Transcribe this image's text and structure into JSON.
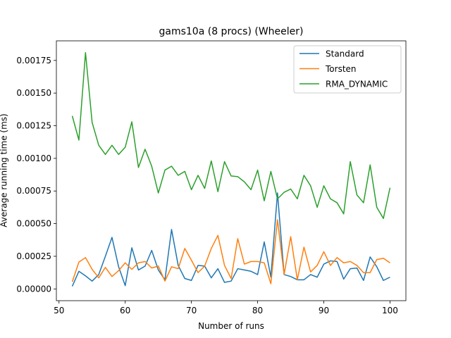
{
  "chart_data": {
    "type": "line",
    "title": "gams10a (8 procs) (Wheeler)",
    "xlabel": "Number of runs",
    "ylabel": "Average running time (ms)",
    "xlim": [
      49.6,
      102.4
    ],
    "ylim": [
      -9e-05,
      0.0019
    ],
    "xticks": [
      50,
      60,
      70,
      80,
      90,
      100
    ],
    "yticks": [
      0.0,
      0.00025,
      0.0005,
      0.00075,
      0.001,
      0.00125,
      0.0015,
      0.00175
    ],
    "ytick_labels": [
      "0.00000",
      "0.00025",
      "0.00050",
      "0.00075",
      "0.00100",
      "0.00125",
      "0.00150",
      "0.00175"
    ],
    "legend_position": "top-right",
    "x": [
      52,
      53,
      54,
      55,
      56,
      57,
      58,
      59,
      60,
      61,
      62,
      63,
      64,
      65,
      66,
      67,
      68,
      69,
      70,
      71,
      72,
      73,
      74,
      75,
      76,
      77,
      78,
      79,
      80,
      81,
      82,
      83,
      84,
      85,
      86,
      87,
      88,
      89,
      90,
      91,
      92,
      93,
      94,
      95,
      96,
      97,
      98,
      99,
      100
    ],
    "series": [
      {
        "name": "Standard",
        "color": "#1f77b4",
        "values": [
          2e-05,
          0.000135,
          0.0001,
          6e-05,
          0.00011,
          0.00025,
          0.000395,
          0.00017,
          2.5e-05,
          0.000315,
          0.000145,
          0.000175,
          0.000295,
          0.000145,
          7e-05,
          0.000455,
          0.00018,
          8e-05,
          6.5e-05,
          0.00018,
          0.000175,
          8.5e-05,
          0.000155,
          5e-05,
          6e-05,
          0.000155,
          0.000145,
          0.000135,
          0.00011,
          0.00036,
          9e-05,
          0.000735,
          0.00011,
          9.5e-05,
          7e-05,
          7e-05,
          0.00011,
          9e-05,
          0.00019,
          0.000215,
          0.00021,
          7.5e-05,
          0.000155,
          0.00016,
          6.5e-05,
          0.000245,
          0.00017,
          6.5e-05,
          9e-05
        ]
      },
      {
        "name": "Torsten",
        "color": "#ff7f0e",
        "values": [
          5.5e-05,
          0.000205,
          0.00024,
          0.00015,
          8.5e-05,
          0.000165,
          9.5e-05,
          0.00014,
          0.0002,
          0.00015,
          0.0002,
          0.00021,
          0.00016,
          0.000175,
          6e-05,
          0.00017,
          0.000155,
          0.00031,
          0.00022,
          0.000125,
          0.000175,
          0.00031,
          0.00041,
          0.00018,
          8e-05,
          0.000385,
          0.00019,
          0.00021,
          0.00021,
          0.0002,
          4e-05,
          0.00053,
          0.00011,
          0.0004,
          7e-05,
          0.00032,
          0.00013,
          0.00018,
          0.000285,
          0.00018,
          0.00024,
          0.0002,
          0.00021,
          0.00018,
          0.000125,
          0.000125,
          0.000225,
          0.000235,
          0.0002
        ]
      },
      {
        "name": "RMA_DYNAMIC",
        "color": "#2ca02c",
        "values": [
          0.001325,
          0.00114,
          0.00181,
          0.001275,
          0.0011,
          0.00103,
          0.0011,
          0.00103,
          0.001085,
          0.00128,
          0.00093,
          0.00107,
          0.00094,
          0.000735,
          0.00091,
          0.00094,
          0.00087,
          0.0009,
          0.00076,
          0.00087,
          0.00077,
          0.00098,
          0.000745,
          0.000975,
          0.000865,
          0.00086,
          0.00082,
          0.00076,
          0.00091,
          0.000675,
          0.0009,
          0.00069,
          0.00074,
          0.000765,
          0.00069,
          0.00087,
          0.00079,
          0.000625,
          0.00079,
          0.00069,
          0.00066,
          0.000575,
          0.000975,
          0.00072,
          0.00066,
          0.00095,
          0.000625,
          0.00054,
          0.000775
        ]
      }
    ]
  }
}
